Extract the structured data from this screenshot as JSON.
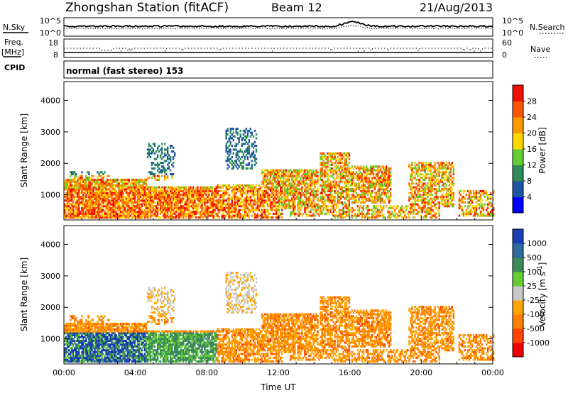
{
  "header": {
    "station": "Zhongshan Station (fitACF)",
    "beam": "Beam 12",
    "date": "21/Aug/2013"
  },
  "noise_panel": {
    "left_label": "N.Sky",
    "right_label": "N.Search",
    "left_ticks": [
      "10^5",
      "10^0"
    ],
    "right_ticks": [
      "10^5",
      "10^0"
    ]
  },
  "freq_panel": {
    "left_label_1": "Freq.",
    "left_label_2": "[MHz]",
    "right_label": "Nave",
    "left_ticks": [
      "18",
      "8"
    ],
    "right_ticks": [
      "60",
      "0"
    ]
  },
  "cpid": {
    "label": "CPID",
    "value": "normal (fast stereo) 153"
  },
  "colors": {
    "power_scale": [
      "#0000ff",
      "#1f56a4",
      "#2e8b57",
      "#66cc33",
      "#ffd700",
      "#ff9900",
      "#ff5500",
      "#ee1100"
    ],
    "velocity_scale": [
      "#1a3fb3",
      "#2e6b9e",
      "#3a8a5a",
      "#66cc33",
      "#c8c8c8",
      "#ffa500",
      "#ff7f00",
      "#ff4500",
      "#ee0000"
    ]
  },
  "chart_data": [
    {
      "type": "heatmap",
      "ylabel": "Slant Range [km]",
      "yticks": [
        1000,
        2000,
        3000,
        4000
      ],
      "ylim": [
        200,
        4600
      ],
      "xticks": [
        "00:00",
        "04:00",
        "08:00",
        "12:00",
        "16:00",
        "20:00",
        "00:00"
      ],
      "xlim_hours": [
        0,
        24
      ],
      "colorbar": {
        "label": "Power [dB]",
        "ticks": [
          "4",
          "8",
          "12",
          "16",
          "20",
          "24",
          "28"
        ],
        "range": [
          0,
          32
        ]
      }
    },
    {
      "type": "heatmap",
      "ylabel": "Slant Range [km]",
      "yticks": [
        1000,
        2000,
        3000,
        4000
      ],
      "ylim": [
        200,
        4600
      ],
      "xticks": [
        "00:00",
        "04:00",
        "08:00",
        "12:00",
        "16:00",
        "20:00",
        "00:00"
      ],
      "xlabel": "Time UT",
      "xlim_hours": [
        0,
        24
      ],
      "colorbar": {
        "label": "Velocity [m s",
        "label_superscript": "-1",
        "label_close": "]",
        "ticks": [
          "1000",
          "500",
          "100",
          "25",
          "-25",
          "-100",
          "-500",
          "-1000"
        ]
      }
    }
  ]
}
